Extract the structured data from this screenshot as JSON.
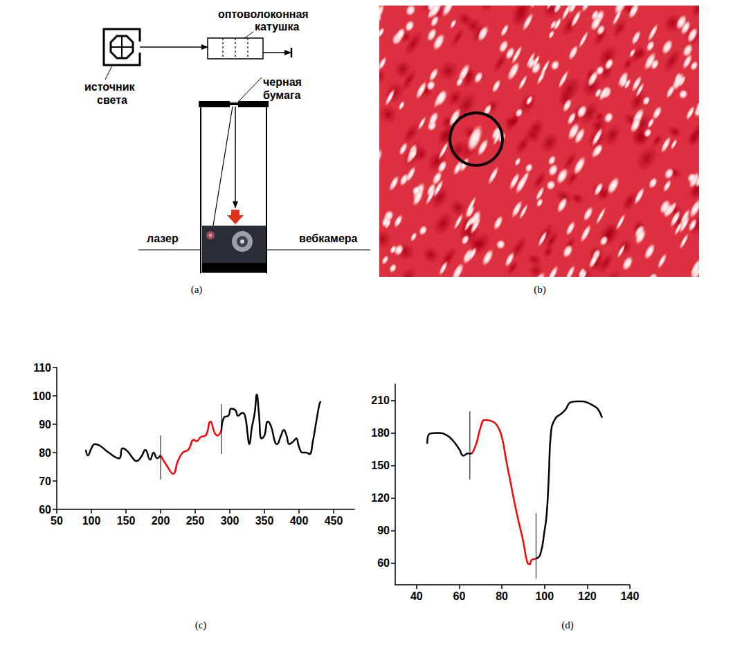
{
  "panel_labels": [
    "(a)",
    "(b)",
    "(c)",
    "(d)"
  ],
  "diagram": {
    "labels": {
      "fiber_coil": [
        "оптоволоконная",
        "катушка"
      ],
      "light_source": [
        "источник",
        "света"
      ],
      "black_paper": [
        "черная",
        "бумага"
      ],
      "laser": "лазер",
      "webcam": "вебкамера"
    }
  },
  "chart_data": [
    {
      "type": "line",
      "grid": false,
      "xlim": [
        50,
        480
      ],
      "xticks": [
        50,
        100,
        150,
        200,
        250,
        300,
        350,
        400,
        450
      ],
      "ylim": [
        60,
        110
      ],
      "yticks": [
        60,
        70,
        80,
        90,
        100,
        110
      ],
      "series": [
        {
          "color": "#000000",
          "x": [
            92,
            95,
            100,
            105,
            112,
            125,
            140,
            145,
            152,
            160,
            165,
            172,
            178,
            185,
            190,
            195,
            200
          ],
          "values": [
            81,
            79,
            81.5,
            83,
            82.5,
            80,
            78,
            81.5,
            80.5,
            78,
            77,
            78.5,
            81,
            77.5,
            80,
            78,
            79
          ]
        },
        {
          "color": "#ff0000",
          "x": [
            200,
            210,
            218,
            225,
            232,
            240,
            248,
            252,
            258,
            265,
            272,
            278,
            282,
            288
          ],
          "values": [
            79,
            75,
            72.5,
            77,
            80,
            81,
            84.5,
            84,
            85.5,
            86,
            91,
            87,
            86,
            88
          ]
        },
        {
          "color": "#000000",
          "x": [
            288,
            292,
            298,
            302,
            308,
            312,
            318,
            322,
            326,
            328,
            332,
            336,
            339,
            342,
            346,
            350,
            355,
            360,
            365,
            368,
            374,
            378,
            382,
            386,
            392,
            396,
            400,
            405,
            410,
            415,
            420,
            425,
            430,
            432
          ],
          "values": [
            88,
            92.5,
            93,
            95.5,
            95,
            93,
            94,
            93,
            86,
            83,
            89,
            94,
            100.5,
            94,
            85,
            86,
            91,
            89,
            84,
            83,
            86,
            88,
            86,
            83,
            84,
            85,
            82,
            80,
            80,
            79.5,
            84,
            91,
            97.5,
            98
          ]
        }
      ],
      "vlines": [
        {
          "x": 200,
          "y": [
            70.5,
            86
          ]
        },
        {
          "x": 288,
          "y": [
            79.5,
            97
          ]
        }
      ]
    },
    {
      "type": "line",
      "grid": false,
      "xlim": [
        30,
        140
      ],
      "xticks": [
        40,
        60,
        80,
        100,
        120,
        140
      ],
      "ylim": [
        40,
        225
      ],
      "yticks": [
        60,
        90,
        120,
        150,
        180,
        210
      ],
      "series": [
        {
          "color": "#000000",
          "x": [
            45,
            46,
            50,
            54,
            57,
            60,
            62,
            64,
            66
          ],
          "values": [
            170,
            179,
            180,
            178,
            173,
            165,
            159,
            161,
            161
          ]
        },
        {
          "color": "#ff0000",
          "x": [
            66,
            68,
            70,
            72,
            75,
            78,
            80,
            82,
            84,
            86,
            88,
            90,
            92,
            93,
            94,
            96
          ],
          "values": [
            161,
            170,
            185,
            192,
            191,
            186,
            176,
            155,
            135,
            115,
            97,
            80,
            60,
            59,
            63,
            64
          ]
        },
        {
          "color": "#000000",
          "x": [
            96,
            98,
            100,
            101,
            102,
            103,
            105,
            108,
            110,
            112,
            115,
            118,
            120,
            123,
            125,
            127
          ],
          "values": [
            64,
            68,
            90,
            105,
            140,
            180,
            193,
            198,
            202,
            208,
            209,
            209,
            208,
            205,
            202,
            194
          ]
        }
      ],
      "vlines": [
        {
          "x": 65,
          "y": [
            137,
            200
          ]
        },
        {
          "x": 96,
          "y": [
            46,
            106
          ]
        }
      ]
    }
  ]
}
